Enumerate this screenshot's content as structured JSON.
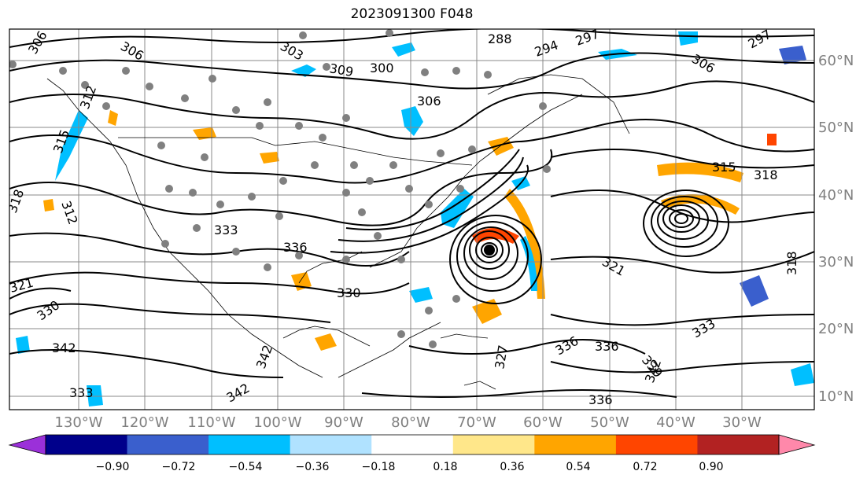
{
  "title": "2023091300 F048",
  "lon_labels": [
    "130°W",
    "120°W",
    "110°W",
    "100°W",
    "90°W",
    "80°W",
    "70°W",
    "60°W",
    "50°W",
    "40°W",
    "30°W"
  ],
  "lat_labels": [
    "60°N",
    "50°N",
    "40°N",
    "30°N",
    "20°N",
    "10°N"
  ],
  "contour_labels": [
    "306",
    "306",
    "303",
    "309",
    "300",
    "306",
    "288",
    "294",
    "297",
    "297",
    "306",
    "312",
    "315",
    "318",
    "312",
    "333",
    "336",
    "330",
    "327",
    "342",
    "336",
    "336",
    "339",
    "342",
    "333",
    "321",
    "315",
    "318",
    "321",
    "330",
    "342",
    "333",
    "336",
    "342",
    "318"
  ],
  "colorbar": {
    "ticks": [
      "−0.90",
      "−0.72",
      "−0.54",
      "−0.36",
      "−0.18",
      "0.18",
      "0.36",
      "0.54",
      "0.72",
      "0.90"
    ],
    "colors": [
      "#9b30d9",
      "#00008b",
      "#3a5fcd",
      "#00bfff",
      "#b0e2ff",
      "#ffffff",
      "#ffe78a",
      "#ffa500",
      "#ff4500",
      "#b22222",
      "#ff88aa"
    ]
  }
}
